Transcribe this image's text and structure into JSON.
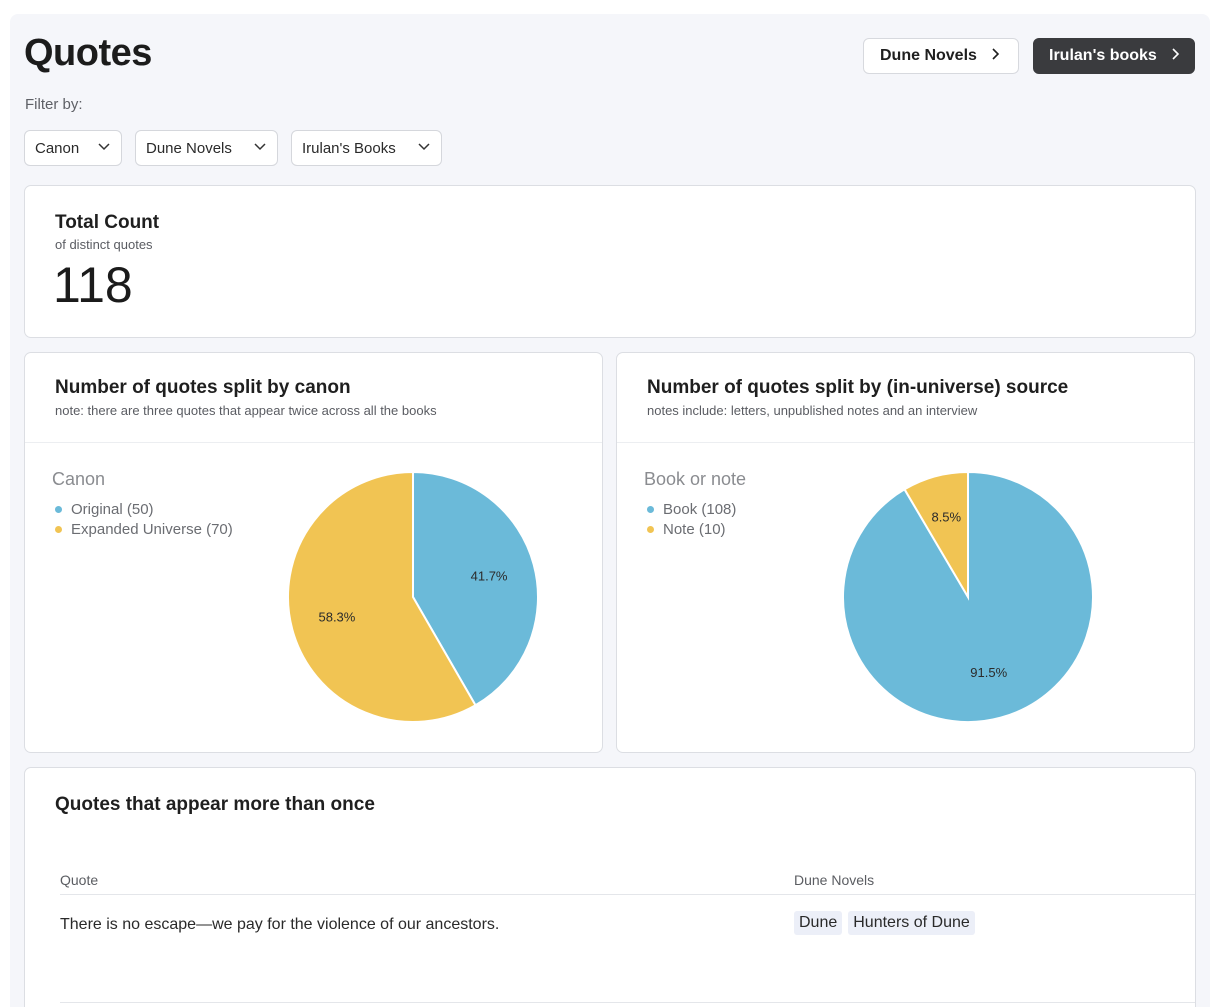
{
  "header": {
    "title": "Quotes",
    "nav_buttons": [
      {
        "label": "Dune Novels"
      },
      {
        "label": "Irulan's books"
      }
    ]
  },
  "filters": {
    "label": "Filter by:",
    "dropdowns": [
      {
        "label": "Canon"
      },
      {
        "label": "Dune Novels"
      },
      {
        "label": "Irulan's Books"
      }
    ]
  },
  "total": {
    "title": "Total Count",
    "subtitle": "of distinct quotes",
    "value": "118"
  },
  "charts_text": {
    "canon": {
      "title": "Number of quotes split by canon",
      "subtitle": "note: there are three quotes that appear twice across all the books",
      "legend_title": "Canon",
      "legend": [
        "Original (50)",
        "Expanded Universe (70)"
      ]
    },
    "source": {
      "title": "Number of quotes split by (in-universe) source",
      "subtitle": "notes include: letters, unpublished notes and an interview",
      "legend_title": "Book or note",
      "legend": [
        "Book (108)",
        "Note (10)"
      ]
    }
  },
  "chart_data": [
    {
      "type": "pie",
      "title": "Number of quotes split by canon",
      "legend_title": "Canon",
      "categories": [
        "Original",
        "Expanded Universe"
      ],
      "values": [
        50,
        70
      ],
      "labels": [
        "41.7%",
        "58.3%"
      ],
      "colors": [
        "#6bbad9",
        "#f1c453"
      ]
    },
    {
      "type": "pie",
      "title": "Number of quotes split by (in-universe) source",
      "legend_title": "Book or note",
      "categories": [
        "Book",
        "Note"
      ],
      "values": [
        108,
        10
      ],
      "labels": [
        "91.5%",
        "8.5%"
      ],
      "colors": [
        "#6bbad9",
        "#f1c453"
      ]
    }
  ],
  "table": {
    "title": "Quotes that appear more than once",
    "columns": [
      "Quote",
      "Dune Novels"
    ],
    "rows": [
      {
        "quote": "There is no escape—we pay for the violence of our ancestors.",
        "novels": [
          "Dune",
          "Hunters of Dune"
        ]
      }
    ]
  },
  "icons": {
    "nav_chevron": "chevron-right-icon",
    "dropdown_chevron": "chevron-down-icon"
  }
}
